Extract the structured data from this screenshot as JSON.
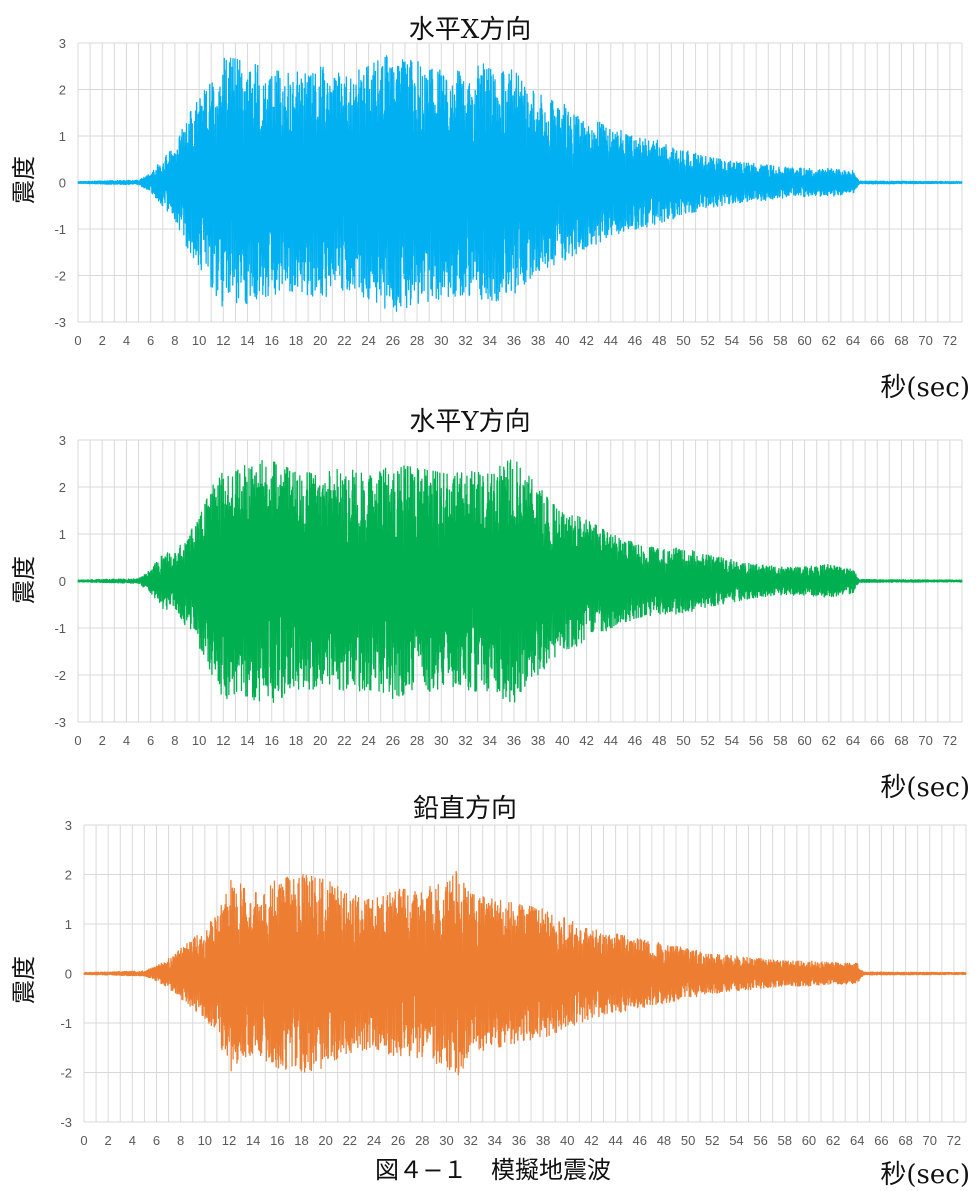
{
  "caption": "図４−１　模擬地震波",
  "chart_data": [
    {
      "type": "line",
      "title": "水平X方向",
      "xlabel": "秒(sec)",
      "ylabel": "震度",
      "ylim": [
        -3,
        3
      ],
      "xlim": [
        0,
        73
      ],
      "yticks": [
        "3",
        "2",
        "1",
        "0",
        "-1",
        "-2",
        "-3"
      ],
      "xticks": [
        "0",
        "2",
        "4",
        "6",
        "8",
        "10",
        "12",
        "14",
        "16",
        "18",
        "20",
        "22",
        "24",
        "26",
        "28",
        "30",
        "32",
        "34",
        "36",
        "38",
        "40",
        "42",
        "44",
        "46",
        "48",
        "50",
        "52",
        "54",
        "56",
        "58",
        "60",
        "62",
        "64",
        "66",
        "68",
        "70",
        "72"
      ],
      "grid": true,
      "legend": "none",
      "color": "#00b0f0",
      "series": [
        {
          "envelope_time": [
            0,
            5,
            6,
            7,
            8,
            9,
            10,
            12,
            14,
            16,
            18,
            20,
            22,
            24,
            26,
            28,
            30,
            32,
            34,
            36,
            38,
            40,
            42,
            44,
            46,
            48,
            50,
            52,
            54,
            56,
            58,
            60,
            62,
            64,
            64.5,
            73
          ],
          "envelope_peak": [
            0.02,
            0.05,
            0.2,
            0.5,
            0.8,
            1.4,
            1.8,
            2.7,
            2.6,
            2.4,
            2.4,
            2.5,
            2.3,
            2.5,
            2.8,
            2.6,
            2.5,
            2.4,
            2.6,
            2.4,
            1.9,
            1.7,
            1.4,
            1.2,
            1.0,
            0.9,
            0.7,
            0.55,
            0.45,
            0.4,
            0.35,
            0.3,
            0.3,
            0.25,
            0.03,
            0.02
          ]
        }
      ]
    },
    {
      "type": "line",
      "title": "水平Y方向",
      "xlabel": "秒(sec)",
      "ylabel": "震度",
      "ylim": [
        -3,
        3
      ],
      "xlim": [
        0,
        73
      ],
      "yticks": [
        "3",
        "2",
        "1",
        "0",
        "-1",
        "-2",
        "-3"
      ],
      "xticks": [
        "0",
        "2",
        "4",
        "6",
        "8",
        "10",
        "12",
        "14",
        "16",
        "18",
        "20",
        "22",
        "24",
        "26",
        "28",
        "30",
        "32",
        "34",
        "36",
        "38",
        "40",
        "42",
        "44",
        "46",
        "48",
        "50",
        "52",
        "54",
        "56",
        "58",
        "60",
        "62",
        "64",
        "66",
        "68",
        "70",
        "72"
      ],
      "grid": true,
      "legend": "none",
      "color": "#00b050",
      "series": [
        {
          "envelope_time": [
            0,
            5,
            6,
            7,
            8,
            9,
            10,
            12,
            14,
            16,
            18,
            20,
            22,
            24,
            26,
            28,
            30,
            32,
            34,
            36,
            38,
            40,
            42,
            44,
            46,
            48,
            50,
            52,
            54,
            56,
            58,
            60,
            62,
            64,
            64.5,
            73
          ],
          "envelope_peak": [
            0.02,
            0.05,
            0.25,
            0.6,
            0.6,
            1.0,
            1.4,
            2.5,
            2.5,
            2.6,
            2.3,
            2.3,
            2.4,
            2.3,
            2.5,
            2.4,
            2.3,
            2.3,
            2.4,
            2.6,
            2.0,
            1.5,
            1.3,
            1.0,
            0.8,
            0.7,
            0.7,
            0.55,
            0.45,
            0.35,
            0.3,
            0.3,
            0.35,
            0.25,
            0.03,
            0.02
          ]
        }
      ]
    },
    {
      "type": "line",
      "title": "鉛直方向",
      "xlabel": "秒(sec)",
      "ylabel": "震度",
      "ylim": [
        -3,
        3
      ],
      "xlim": [
        0,
        73
      ],
      "yticks": [
        "3",
        "2",
        "1",
        "0",
        "-1",
        "-2",
        "-3"
      ],
      "xticks": [
        "0",
        "2",
        "4",
        "6",
        "8",
        "10",
        "12",
        "14",
        "16",
        "18",
        "20",
        "22",
        "24",
        "26",
        "28",
        "30",
        "32",
        "34",
        "36",
        "38",
        "40",
        "42",
        "44",
        "46",
        "48",
        "50",
        "52",
        "54",
        "56",
        "58",
        "60",
        "62",
        "64",
        "66",
        "68",
        "70",
        "72"
      ],
      "grid": true,
      "legend": "none",
      "color": "#ed7d31",
      "series": [
        {
          "envelope_time": [
            0,
            5,
            6,
            7,
            8,
            9,
            10,
            11,
            12,
            14,
            16,
            18,
            20,
            22,
            24,
            26,
            28,
            30,
            31,
            32,
            34,
            36,
            38,
            40,
            42,
            44,
            46,
            48,
            50,
            52,
            54,
            56,
            58,
            60,
            62,
            64,
            64.5,
            73
          ],
          "envelope_peak": [
            0.02,
            0.05,
            0.15,
            0.3,
            0.5,
            0.7,
            0.9,
            1.2,
            2.0,
            1.6,
            1.9,
            2.0,
            1.9,
            1.6,
            1.5,
            1.7,
            1.7,
            1.9,
            2.1,
            1.6,
            1.5,
            1.4,
            1.3,
            1.1,
            0.9,
            0.8,
            0.7,
            0.6,
            0.5,
            0.4,
            0.35,
            0.3,
            0.25,
            0.25,
            0.22,
            0.2,
            0.03,
            0.02
          ]
        }
      ]
    }
  ]
}
